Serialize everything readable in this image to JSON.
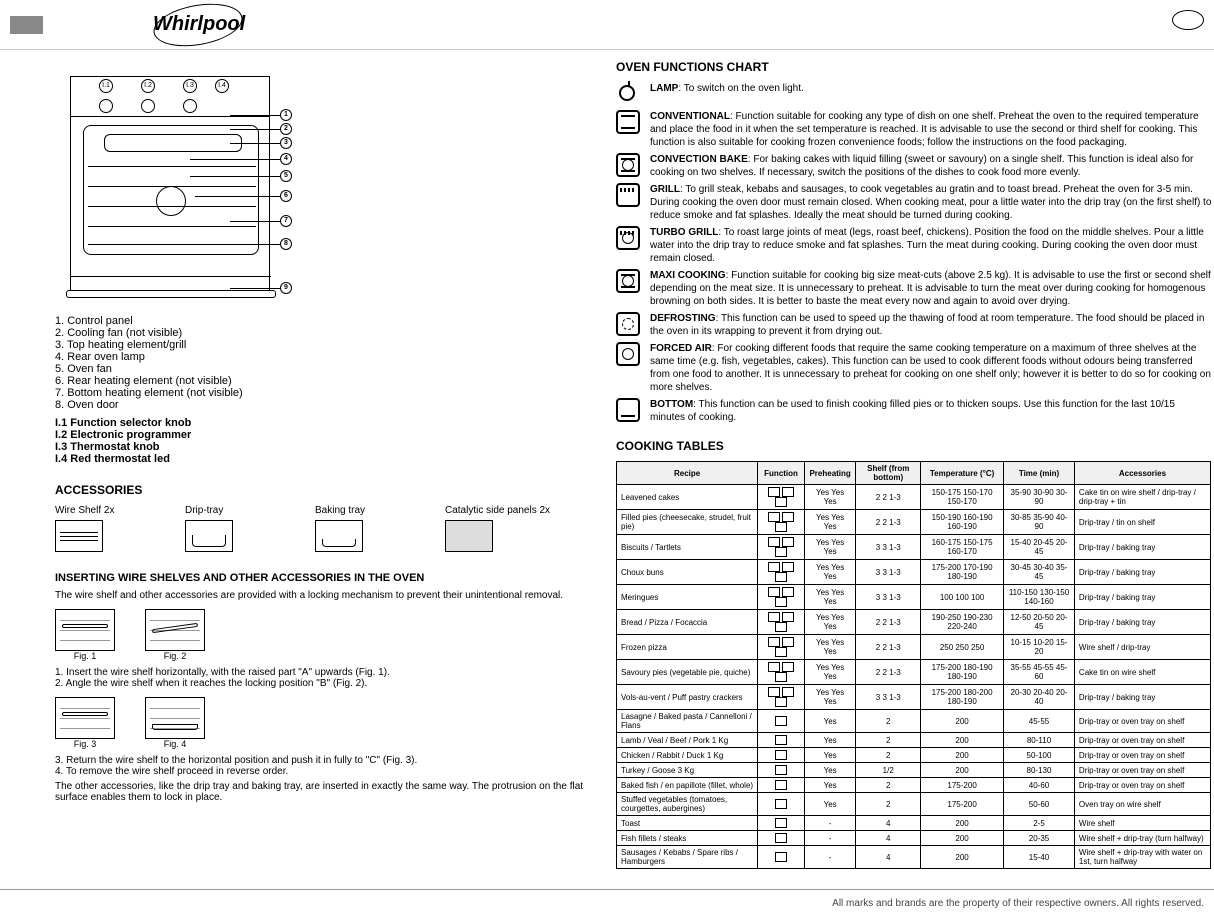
{
  "brand": "Whirlpool",
  "legend": {
    "title_parts": "1. Control panel\n2. Cooling fan (not visible)\n3. Top heating element/grill\n4. Rear oven lamp\n5. Oven fan\n6. Rear heating element (not visible)\n7. Bottom heating element (not visible)\n8. Oven door",
    "title_knobs": "I.1 Function selector knob\nI.2 Electronic programmer\nI.3 Thermostat knob\nI.4 Red thermostat led"
  },
  "accessories": {
    "title": "ACCESSORIES",
    "items": [
      {
        "name": "Wire Shelf 2x",
        "label": "Wire Shelf 2x"
      },
      {
        "name": "Drip-tray",
        "label": "Drip-tray"
      },
      {
        "name": "Baking tray",
        "label": "Baking tray"
      },
      {
        "name": "Catalytic side panels 2x",
        "label": "Catalytic side panels 2x"
      }
    ]
  },
  "grid_section": {
    "title": "INSERTING WIRE SHELVES AND OTHER ACCESSORIES IN THE OVEN",
    "text": "The wire shelf and other accessories are provided with a locking mechanism to prevent their unintentional removal.",
    "fig1": "Fig. 1",
    "fig2": "Fig. 2",
    "point1": "1. Insert the wire shelf horizontally, with the raised part \"A\" upwards (Fig. 1).",
    "point2": "2. Angle the wire shelf when it reaches the locking position \"B\" (Fig. 2).",
    "fig3": "Fig. 3",
    "fig4": "Fig. 4",
    "point3": "3. Return the wire shelf to the horizontal position and push it in fully to \"C\" (Fig. 3).",
    "point4": "4. To remove the wire shelf proceed in reverse order.",
    "note": "The other accessories, like the drip tray and baking tray, are inserted in exactly the same way. The protrusion on the flat surface enables them to lock in place."
  },
  "functions": {
    "title": "OVEN FUNCTIONS CHART",
    "rows": [
      {
        "icon": "bulb",
        "label": "LAMP",
        "text": "To switch on the oven light."
      },
      {
        "icon": "conv",
        "label": "CONVENTIONAL",
        "text": "Function suitable for cooking any type of dish on one shelf. Preheat the oven to the required temperature and place the food in it when the set temperature is reached. It is advisable to use the second or third shelf for cooking. This function is also suitable for cooking frozen convenience foods; follow the instructions on the food packaging."
      },
      {
        "icon": "convbake",
        "label": "CONVECTION BAKE",
        "text": "For baking cakes with liquid filling (sweet or savoury) on a single shelf. This function is ideal also for cooking on two shelves. If necessary, switch the positions of the dishes to cook food more evenly."
      },
      {
        "icon": "grill",
        "label": "GRILL",
        "text": "To grill steak, kebabs and sausages, to cook vegetables au gratin and to toast bread. Preheat the oven for 3-5 min. During cooking the oven door must remain closed. When cooking meat, pour a little water into the drip tray (on the first shelf) to reduce smoke and fat splashes. Ideally the meat should be turned during cooking."
      },
      {
        "icon": "turbogrill",
        "label": "TURBO GRILL",
        "text": "To roast large joints of meat (legs, roast beef, chickens). Position the food on the middle shelves. Pour a little water into the drip tray to reduce smoke and fat splashes. Turn the meat during cooking. During cooking the oven door must remain closed."
      },
      {
        "icon": "maxi",
        "label": "MAXI COOKING",
        "text": "Function suitable for cooking big size meat-cuts (above 2.5 kg). It is advisable to use the first or second shelf depending on the meat size. It is unnecessary to preheat. It is advisable to turn the meat over during cooking for homogenous browning on both sides. It is better to baste the meat every now and again to avoid over drying."
      },
      {
        "icon": "defrost",
        "label": "DEFROSTING",
        "text": "This function can be used to speed up the thawing of food at room temperature. The food should be placed in the oven in its wrapping to prevent it from drying out."
      },
      {
        "icon": "forcedair",
        "label": "FORCED AIR",
        "text": "For cooking different foods that require the same cooking temperature on a maximum of three shelves at the same time (e.g. fish, vegetables, cakes). This function can be used to cook different foods without odours being transferred from one food to another. It is unnecessary to preheat for cooking on one shelf only; however it is better to do so for cooking on more shelves."
      },
      {
        "icon": "bottom",
        "label": "BOTTOM",
        "text": "This function can be used to finish cooking filled pies or to thicken soups. Use this function for the last 10/15 minutes of cooking."
      }
    ]
  },
  "cooking_table": {
    "title": "COOKING TABLES",
    "headers": [
      "Recipe",
      "Function",
      "Preheating",
      "Shelf (from bottom)",
      "Temperature (°C)",
      "Time (min)",
      "Accessories"
    ],
    "rows": [
      [
        "Leavened cakes",
        [
          "conv",
          "convbake",
          "forcedair"
        ],
        "Yes Yes Yes",
        "2 2 1-3",
        "150-175 150-170 150-170",
        "35-90 30-90 30-90",
        "Cake tin on wire shelf / drip-tray / drip-tray + tin"
      ],
      [
        "Filled pies (cheesecake, strudel, fruit pie)",
        [
          "conv",
          "convbake",
          "forcedair"
        ],
        "Yes Yes Yes",
        "2 2 1-3",
        "150-190 160-190 160-190",
        "30-85 35-90 40-90",
        "Drip-tray / tin on shelf"
      ],
      [
        "Biscuits / Tartlets",
        [
          "conv",
          "convbake",
          "forcedair"
        ],
        "Yes Yes Yes",
        "3 3 1-3",
        "160-175 150-175 160-170",
        "15-40 20-45 20-45",
        "Drip-tray / baking tray"
      ],
      [
        "Choux buns",
        [
          "conv",
          "convbake",
          "forcedair"
        ],
        "Yes Yes Yes",
        "3 3 1-3",
        "175-200 170-190 180-190",
        "30-45 30-40 35-45",
        "Drip-tray / baking tray"
      ],
      [
        "Meringues",
        [
          "conv",
          "convbake",
          "forcedair"
        ],
        "Yes Yes Yes",
        "3 3 1-3",
        "100 100 100",
        "110-150 130-150 140-160",
        "Drip-tray / baking tray"
      ],
      [
        "Bread / Pizza / Focaccia",
        [
          "conv",
          "convbake",
          "forcedair"
        ],
        "Yes Yes Yes",
        "2 2 1-3",
        "190-250 190-230 220-240",
        "12-50 20-50 20-45",
        "Drip-tray / baking tray"
      ],
      [
        "Frozen pizza",
        [
          "conv",
          "convbake",
          "forcedair"
        ],
        "Yes Yes Yes",
        "2 2 1-3",
        "250 250 250",
        "10-15 10-20 15-20",
        "Wire shelf / drip-tray"
      ],
      [
        "Savoury pies (vegetable pie, quiche)",
        [
          "conv",
          "convbake",
          "forcedair"
        ],
        "Yes Yes Yes",
        "2 2 1-3",
        "175-200 180-190 180-190",
        "35-55 45-55 45-60",
        "Cake tin on wire shelf"
      ],
      [
        "Vols-au-vent / Puff pastry crackers",
        [
          "conv",
          "convbake",
          "forcedair"
        ],
        "Yes Yes Yes",
        "3 3 1-3",
        "175-200 180-200 180-190",
        "20-30 20-40 20-40",
        "Drip-tray / baking tray"
      ],
      [
        "Lasagne / Baked pasta / Cannelloni / Flans",
        [
          "conv"
        ],
        "Yes",
        "2",
        "200",
        "45-55",
        "Drip-tray or oven tray on shelf"
      ],
      [
        "Lamb / Veal / Beef / Pork 1 Kg",
        [
          "conv"
        ],
        "Yes",
        "2",
        "200",
        "80-110",
        "Drip-tray or oven tray on shelf"
      ],
      [
        "Chicken / Rabbit / Duck 1 Kg",
        [
          "conv"
        ],
        "Yes",
        "2",
        "200",
        "50-100",
        "Drip-tray or oven tray on shelf"
      ],
      [
        "Turkey / Goose 3 Kg",
        [
          "conv"
        ],
        "Yes",
        "1/2",
        "200",
        "80-130",
        "Drip-tray or oven tray on shelf"
      ],
      [
        "Baked fish / en papillote (fillet, whole)",
        [
          "conv"
        ],
        "Yes",
        "2",
        "175-200",
        "40-60",
        "Drip-tray or oven tray on shelf"
      ],
      [
        "Stuffed vegetables (tomatoes, courgettes, aubergines)",
        [
          "convbake"
        ],
        "Yes",
        "2",
        "175-200",
        "50-60",
        "Oven tray on wire shelf"
      ],
      [
        "Toast",
        [
          "grill"
        ],
        "-",
        "4",
        "200",
        "2-5",
        "Wire shelf"
      ],
      [
        "Fish fillets / steaks",
        [
          "grill"
        ],
        "-",
        "4",
        "200",
        "20-35",
        "Wire shelf + drip-tray (turn halfway)"
      ],
      [
        "Sausages / Kebabs / Spare ribs / Hamburgers",
        [
          "grill"
        ],
        "-",
        "4",
        "200",
        "15-40",
        "Wire shelf + drip-tray with water on 1st, turn halfway"
      ]
    ]
  },
  "footer": "All marks and brands are the property of their respective owners. All rights reserved."
}
